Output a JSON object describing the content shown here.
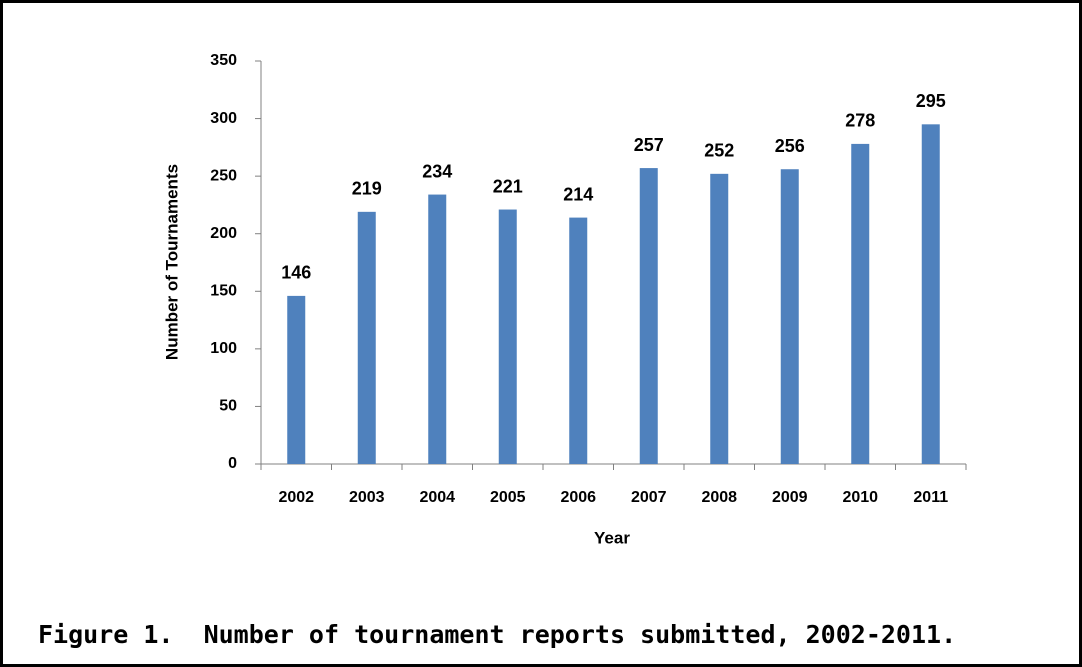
{
  "chart_data": {
    "type": "bar",
    "categories": [
      "2002",
      "2003",
      "2004",
      "2005",
      "2006",
      "2007",
      "2008",
      "2009",
      "2010",
      "2011"
    ],
    "values": [
      146,
      219,
      234,
      221,
      214,
      257,
      252,
      256,
      278,
      295
    ],
    "color": "#4f81bd",
    "xlabel": "Year",
    "ylabel": "Number of Tournaments",
    "ylim": [
      0,
      350
    ],
    "yticks": [
      0,
      50,
      100,
      150,
      200,
      250,
      300,
      350
    ],
    "grid": false,
    "caption": "Figure 1.  Number of tournament reports submitted, 2002-2011."
  }
}
